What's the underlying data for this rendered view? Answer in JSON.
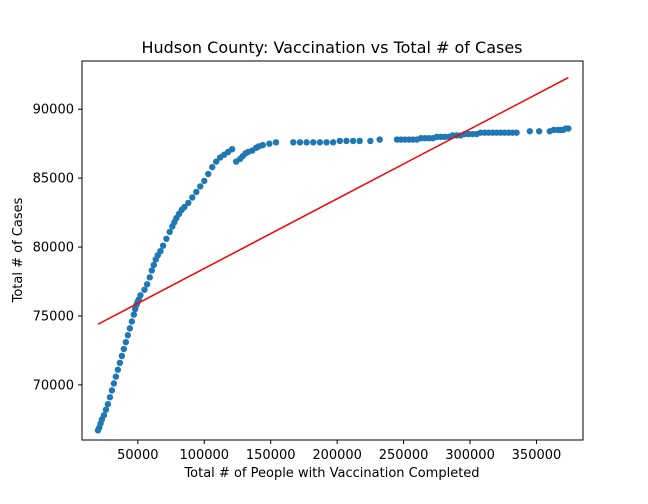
{
  "chart_data": {
    "type": "scatter",
    "title": "Hudson County: Vaccination vs Total # of Cases",
    "xlabel": "Total # of People with Vaccination Completed",
    "ylabel": "Total # of Cases",
    "xlim": [
      8000,
      385000
    ],
    "ylim": [
      66000,
      93500
    ],
    "xticks": [
      50000,
      100000,
      150000,
      200000,
      250000,
      300000,
      350000
    ],
    "yticks": [
      70000,
      75000,
      80000,
      85000,
      90000
    ],
    "grid": false,
    "legend": "none",
    "series": [
      {
        "kind": "scatter",
        "color": "#1f77b4",
        "x": [
          20000,
          21000,
          22000,
          23000,
          24500,
          26000,
          27500,
          29000,
          30500,
          32000,
          33500,
          35000,
          36500,
          38000,
          39500,
          41000,
          42500,
          44000,
          45500,
          47000,
          48000,
          49000,
          49800,
          50300,
          50800,
          52000,
          55000,
          57000,
          59000,
          60500,
          62000,
          63500,
          65000,
          67000,
          69000,
          71500,
          74000,
          76000,
          77500,
          79000,
          81000,
          83000,
          85000,
          88000,
          91000,
          94000,
          97000,
          100000,
          103000,
          106000,
          109000,
          112000,
          115000,
          118000,
          121000,
          124000,
          127000,
          129000,
          131000,
          133000,
          136000,
          139000,
          141000,
          144000,
          149000,
          154000,
          167000,
          172000,
          177000,
          182000,
          187000,
          192000,
          197000,
          202000,
          207000,
          212000,
          217000,
          225000,
          232000,
          245000,
          248000,
          251000,
          254000,
          257000,
          260000,
          263000,
          266000,
          269000,
          272000,
          275000,
          278000,
          281000,
          284000,
          287000,
          290000,
          293000,
          296000,
          299000,
          302000,
          305000,
          308000,
          311000,
          314000,
          317000,
          320000,
          323000,
          326000,
          329000,
          332000,
          335000,
          345000,
          352000,
          360000,
          363000,
          366000,
          368000,
          370000,
          372000,
          374000
        ],
        "y": [
          66700,
          66900,
          67200,
          67500,
          67800,
          68200,
          68600,
          69100,
          69600,
          70100,
          70600,
          71100,
          71600,
          72100,
          72600,
          73100,
          73600,
          74100,
          74600,
          75100,
          75500,
          75800,
          76000,
          76100,
          76200,
          76500,
          76900,
          77300,
          77800,
          78300,
          78700,
          79100,
          79400,
          79700,
          80100,
          80600,
          81100,
          81500,
          81800,
          82100,
          82400,
          82700,
          82900,
          83200,
          83600,
          84000,
          84400,
          84800,
          85300,
          85800,
          86200,
          86500,
          86700,
          86900,
          87100,
          86200,
          86400,
          86600,
          86800,
          86900,
          87000,
          87200,
          87300,
          87400,
          87500,
          87600,
          87600,
          87600,
          87600,
          87600,
          87600,
          87600,
          87600,
          87700,
          87700,
          87700,
          87700,
          87700,
          87800,
          87800,
          87800,
          87800,
          87800,
          87800,
          87800,
          87900,
          87900,
          87900,
          87900,
          88000,
          88000,
          88000,
          88000,
          88100,
          88100,
          88100,
          88200,
          88200,
          88200,
          88200,
          88300,
          88300,
          88300,
          88300,
          88300,
          88300,
          88300,
          88300,
          88300,
          88300,
          88400,
          88400,
          88400,
          88500,
          88500,
          88500,
          88500,
          88600,
          88600
        ]
      },
      {
        "kind": "line",
        "color": "#ff0000",
        "x": [
          20000,
          374000
        ],
        "y": [
          74400,
          92300
        ]
      }
    ]
  }
}
